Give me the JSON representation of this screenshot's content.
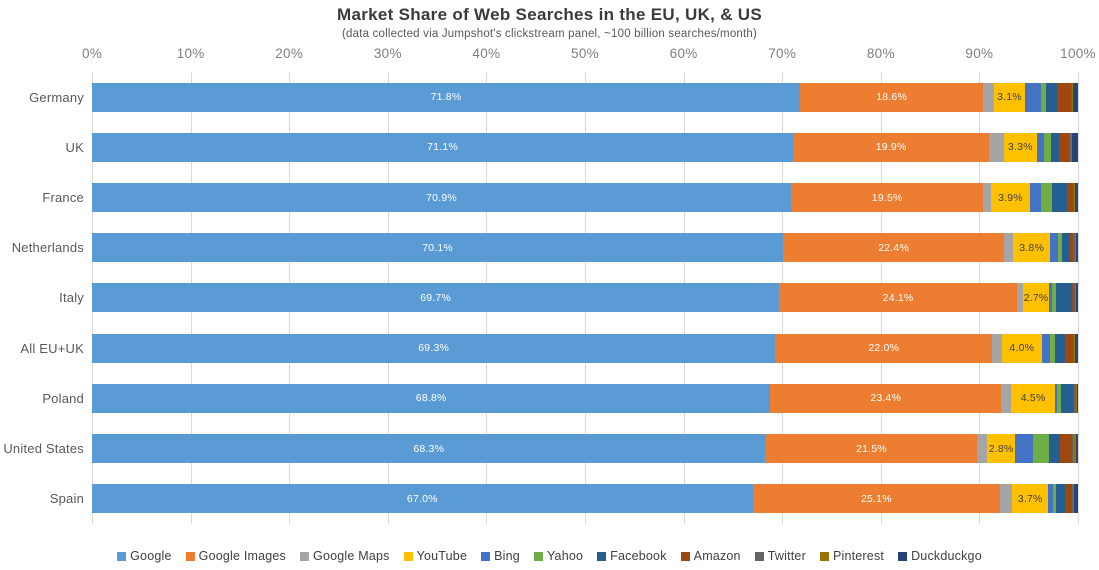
{
  "title": "Market Share of Web Searches in the EU, UK, & US",
  "subtitle": "(data collected via Jumpshot's clickstream panel, ~100 billion searches/month)",
  "axis": {
    "ticks": [
      "0%",
      "10%",
      "20%",
      "30%",
      "40%",
      "50%",
      "60%",
      "70%",
      "80%",
      "90%",
      "100%"
    ],
    "min": 0,
    "max": 100
  },
  "style": {
    "gridline_color": "#d9d9d9",
    "label_color_default": "#ffffff",
    "label_color_on_yellow": "#404040"
  },
  "chart_data": {
    "type": "bar",
    "stacked": true,
    "orientation": "horizontal",
    "title": "Market Share of Web Searches in the EU, UK, & US",
    "subtitle": "(data collected via Jumpshot's clickstream panel, ~100 billion searches/month)",
    "xlim": [
      0,
      100
    ],
    "grid": true,
    "legend_position": "bottom",
    "categories": [
      "Germany",
      "UK",
      "France",
      "Netherlands",
      "Italy",
      "All EU+UK",
      "Poland",
      "United States",
      "Spain"
    ],
    "label_series": [
      "Google",
      "Google Images",
      "YouTube"
    ],
    "series": [
      {
        "name": "Google",
        "color": "#5B9BD5",
        "values": [
          71.8,
          71.1,
          70.9,
          70.1,
          69.7,
          69.3,
          68.8,
          68.3,
          67.0
        ]
      },
      {
        "name": "Google Images",
        "color": "#ED7D31",
        "values": [
          18.6,
          19.9,
          19.5,
          22.4,
          24.1,
          22.0,
          23.4,
          21.5,
          25.1
        ]
      },
      {
        "name": "Google Maps",
        "color": "#A5A5A5",
        "values": [
          1.1,
          1.5,
          0.8,
          0.9,
          0.6,
          1.0,
          1.0,
          1.0,
          1.2
        ]
      },
      {
        "name": "YouTube",
        "color": "#FFC000",
        "values": [
          3.1,
          3.3,
          3.9,
          3.8,
          2.7,
          4.0,
          4.5,
          2.8,
          3.7
        ]
      },
      {
        "name": "Bing",
        "color": "#4472C4",
        "values": [
          1.7,
          0.8,
          1.2,
          0.8,
          0.3,
          0.9,
          0.2,
          1.8,
          0.5
        ]
      },
      {
        "name": "Yahoo",
        "color": "#70AD47",
        "values": [
          0.5,
          0.7,
          1.1,
          0.4,
          0.4,
          0.5,
          0.4,
          1.7,
          0.3
        ]
      },
      {
        "name": "Facebook",
        "color": "#255E91",
        "values": [
          1.1,
          0.8,
          1.5,
          0.8,
          1.6,
          1.0,
          1.2,
          1.1,
          0.9
        ]
      },
      {
        "name": "Amazon",
        "color": "#9E480E",
        "values": [
          1.4,
          1.0,
          0.6,
          0.3,
          0.2,
          0.8,
          0.1,
          1.2,
          0.7
        ]
      },
      {
        "name": "Twitter",
        "color": "#636363",
        "values": [
          0.1,
          0.2,
          0.1,
          0.2,
          0.1,
          0.1,
          0.2,
          0.1,
          0.1
        ]
      },
      {
        "name": "Pinterest",
        "color": "#997300",
        "values": [
          0.1,
          0.1,
          0.1,
          0.1,
          0.1,
          0.1,
          0.1,
          0.3,
          0.1
        ]
      },
      {
        "name": "Duckduckgo",
        "color": "#264478",
        "values": [
          0.5,
          0.6,
          0.3,
          0.2,
          0.2,
          0.3,
          0.1,
          0.2,
          0.4
        ]
      }
    ]
  }
}
